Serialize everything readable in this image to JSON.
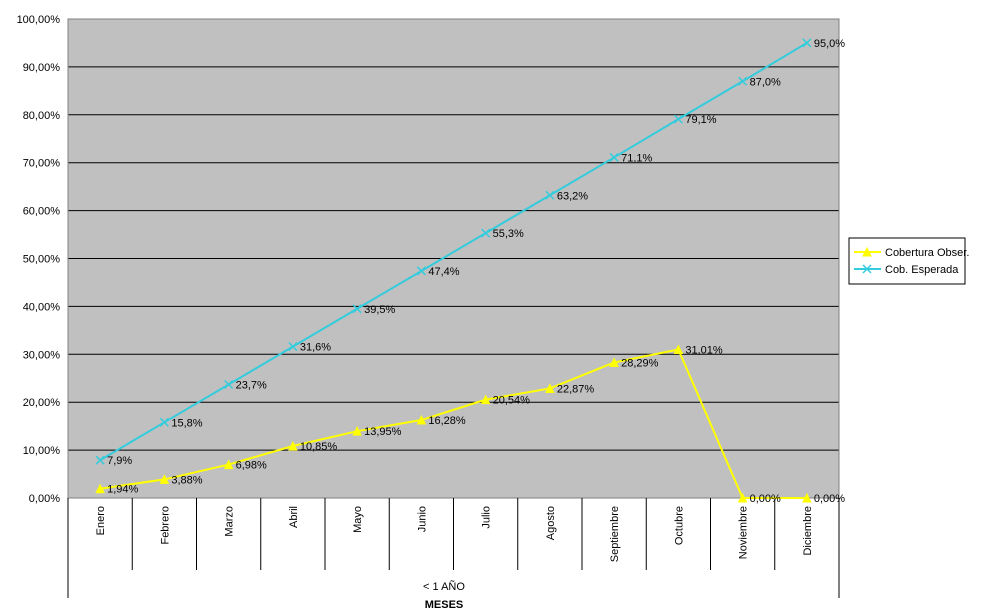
{
  "chart_data": {
    "type": "line",
    "categories": [
      "Enero",
      "Febrero",
      "Marzo",
      "Abril",
      "Mayo",
      "Junio",
      "Julio",
      "Agosto",
      "Septiembre",
      "Octubre",
      "Noviembre",
      "Diciembre"
    ],
    "group_label": "< 1 AÑO",
    "xlabel": "MESES",
    "ylim": [
      0,
      100
    ],
    "yticks": [
      "0,00%",
      "10,00%",
      "20,00%",
      "30,00%",
      "40,00%",
      "50,00%",
      "60,00%",
      "70,00%",
      "80,00%",
      "90,00%",
      "100,00%"
    ],
    "grid": true,
    "plot_background": "#c0c0c0",
    "legend_position": "right",
    "series": [
      {
        "name": "Cobertura Obser.",
        "color": "#ffff00",
        "marker": "triangle",
        "values": [
          1.94,
          3.88,
          6.98,
          10.85,
          13.95,
          16.28,
          20.54,
          22.87,
          28.29,
          31.01,
          0,
          0
        ],
        "labels": [
          "1,94%",
          "3,88%",
          "6,98%",
          "10,85%",
          "13,95%",
          "16,28%",
          "20,54%",
          "22,87%",
          "28,29%",
          "31,01%",
          "0,00%",
          "0,00%"
        ]
      },
      {
        "name": "Cob. Esperada",
        "color": "#33ccdd",
        "marker": "x",
        "values": [
          7.9,
          15.8,
          23.7,
          31.6,
          39.5,
          47.4,
          55.3,
          63.2,
          71.1,
          79.1,
          87.0,
          95.0
        ],
        "labels": [
          "7,9%",
          "15,8%",
          "23,7%",
          "31,6%",
          "39,5%",
          "47,4%",
          "55,3%",
          "63,2%",
          "71,1%",
          "79,1%",
          "87,0%",
          "95,0%"
        ]
      }
    ]
  }
}
